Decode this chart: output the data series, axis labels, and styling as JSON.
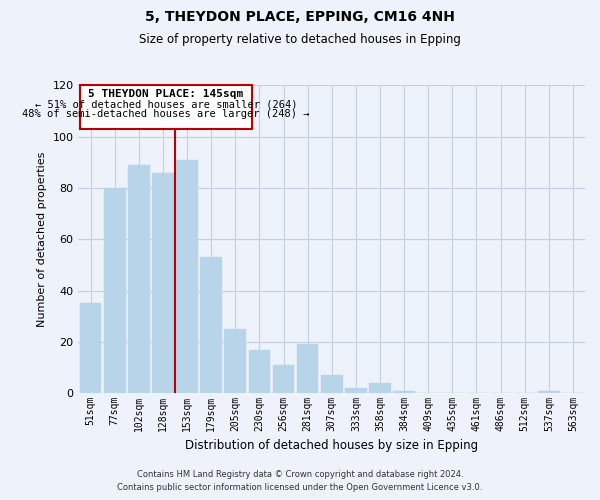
{
  "title": "5, THEYDON PLACE, EPPING, CM16 4NH",
  "subtitle": "Size of property relative to detached houses in Epping",
  "xlabel": "Distribution of detached houses by size in Epping",
  "ylabel": "Number of detached properties",
  "categories": [
    "51sqm",
    "77sqm",
    "102sqm",
    "128sqm",
    "153sqm",
    "179sqm",
    "205sqm",
    "230sqm",
    "256sqm",
    "281sqm",
    "307sqm",
    "333sqm",
    "358sqm",
    "384sqm",
    "409sqm",
    "435sqm",
    "461sqm",
    "486sqm",
    "512sqm",
    "537sqm",
    "563sqm"
  ],
  "values": [
    35,
    80,
    89,
    86,
    91,
    53,
    25,
    17,
    11,
    19,
    7,
    2,
    4,
    1,
    0,
    0,
    0,
    0,
    0,
    1,
    0
  ],
  "bar_color": "#b8d4e8",
  "marker_index": 4,
  "marker_color": "#bb0000",
  "ylim": [
    0,
    120
  ],
  "yticks": [
    0,
    20,
    40,
    60,
    80,
    100,
    120
  ],
  "annotation_title": "5 THEYDON PLACE: 145sqm",
  "annotation_line1": "← 51% of detached houses are smaller (264)",
  "annotation_line2": "48% of semi-detached houses are larger (248) →",
  "footer_line1": "Contains HM Land Registry data © Crown copyright and database right 2024.",
  "footer_line2": "Contains public sector information licensed under the Open Government Licence v3.0.",
  "bg_color": "#eef2fa",
  "plot_bg_color": "#eef2fa",
  "grid_color": "#c5cfe0"
}
